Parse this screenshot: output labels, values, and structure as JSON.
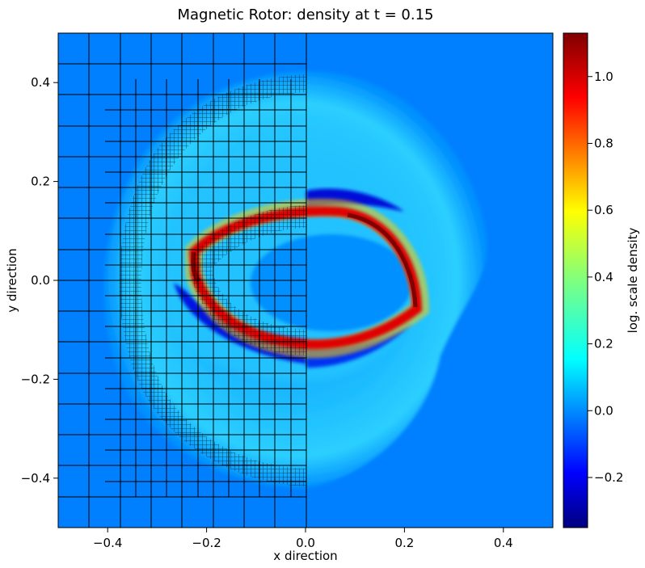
{
  "chart_data": {
    "type": "heatmap",
    "title": "Magnetic Rotor: density at t = 0.15",
    "xlabel": "x direction",
    "ylabel": "y direction",
    "xlim": [
      -0.5,
      0.5
    ],
    "ylim": [
      -0.5,
      0.5
    ],
    "xticks": [
      -0.4,
      -0.2,
      0.0,
      0.2,
      0.4
    ],
    "yticks": [
      -0.4,
      -0.2,
      0.0,
      0.2,
      0.4
    ],
    "xtick_labels": [
      "−0.4",
      "−0.2",
      "0.0",
      "0.2",
      "0.4"
    ],
    "ytick_labels": [
      "−0.4",
      "−0.2",
      "0.0",
      "0.2",
      "0.4"
    ],
    "colorbar": {
      "label": "log. scale density",
      "range": [
        -0.35,
        1.13
      ],
      "ticks": [
        -0.2,
        0.0,
        0.2,
        0.4,
        0.6,
        0.8,
        1.0
      ],
      "tick_labels": [
        "−0.2",
        "0.0",
        "0.2",
        "0.4",
        "0.6",
        "0.8",
        "1.0"
      ],
      "colormap": "jet"
    },
    "mesh_overlay": "left half (x < 0) shows adaptive mesh refinement grid",
    "background_value": 0.0,
    "colors": {
      "background": "#0080ff",
      "outer_shell": "#10b4ff",
      "hot_band": "#d40000",
      "cold_region": "#0010d8",
      "grid": "#000000"
    }
  }
}
